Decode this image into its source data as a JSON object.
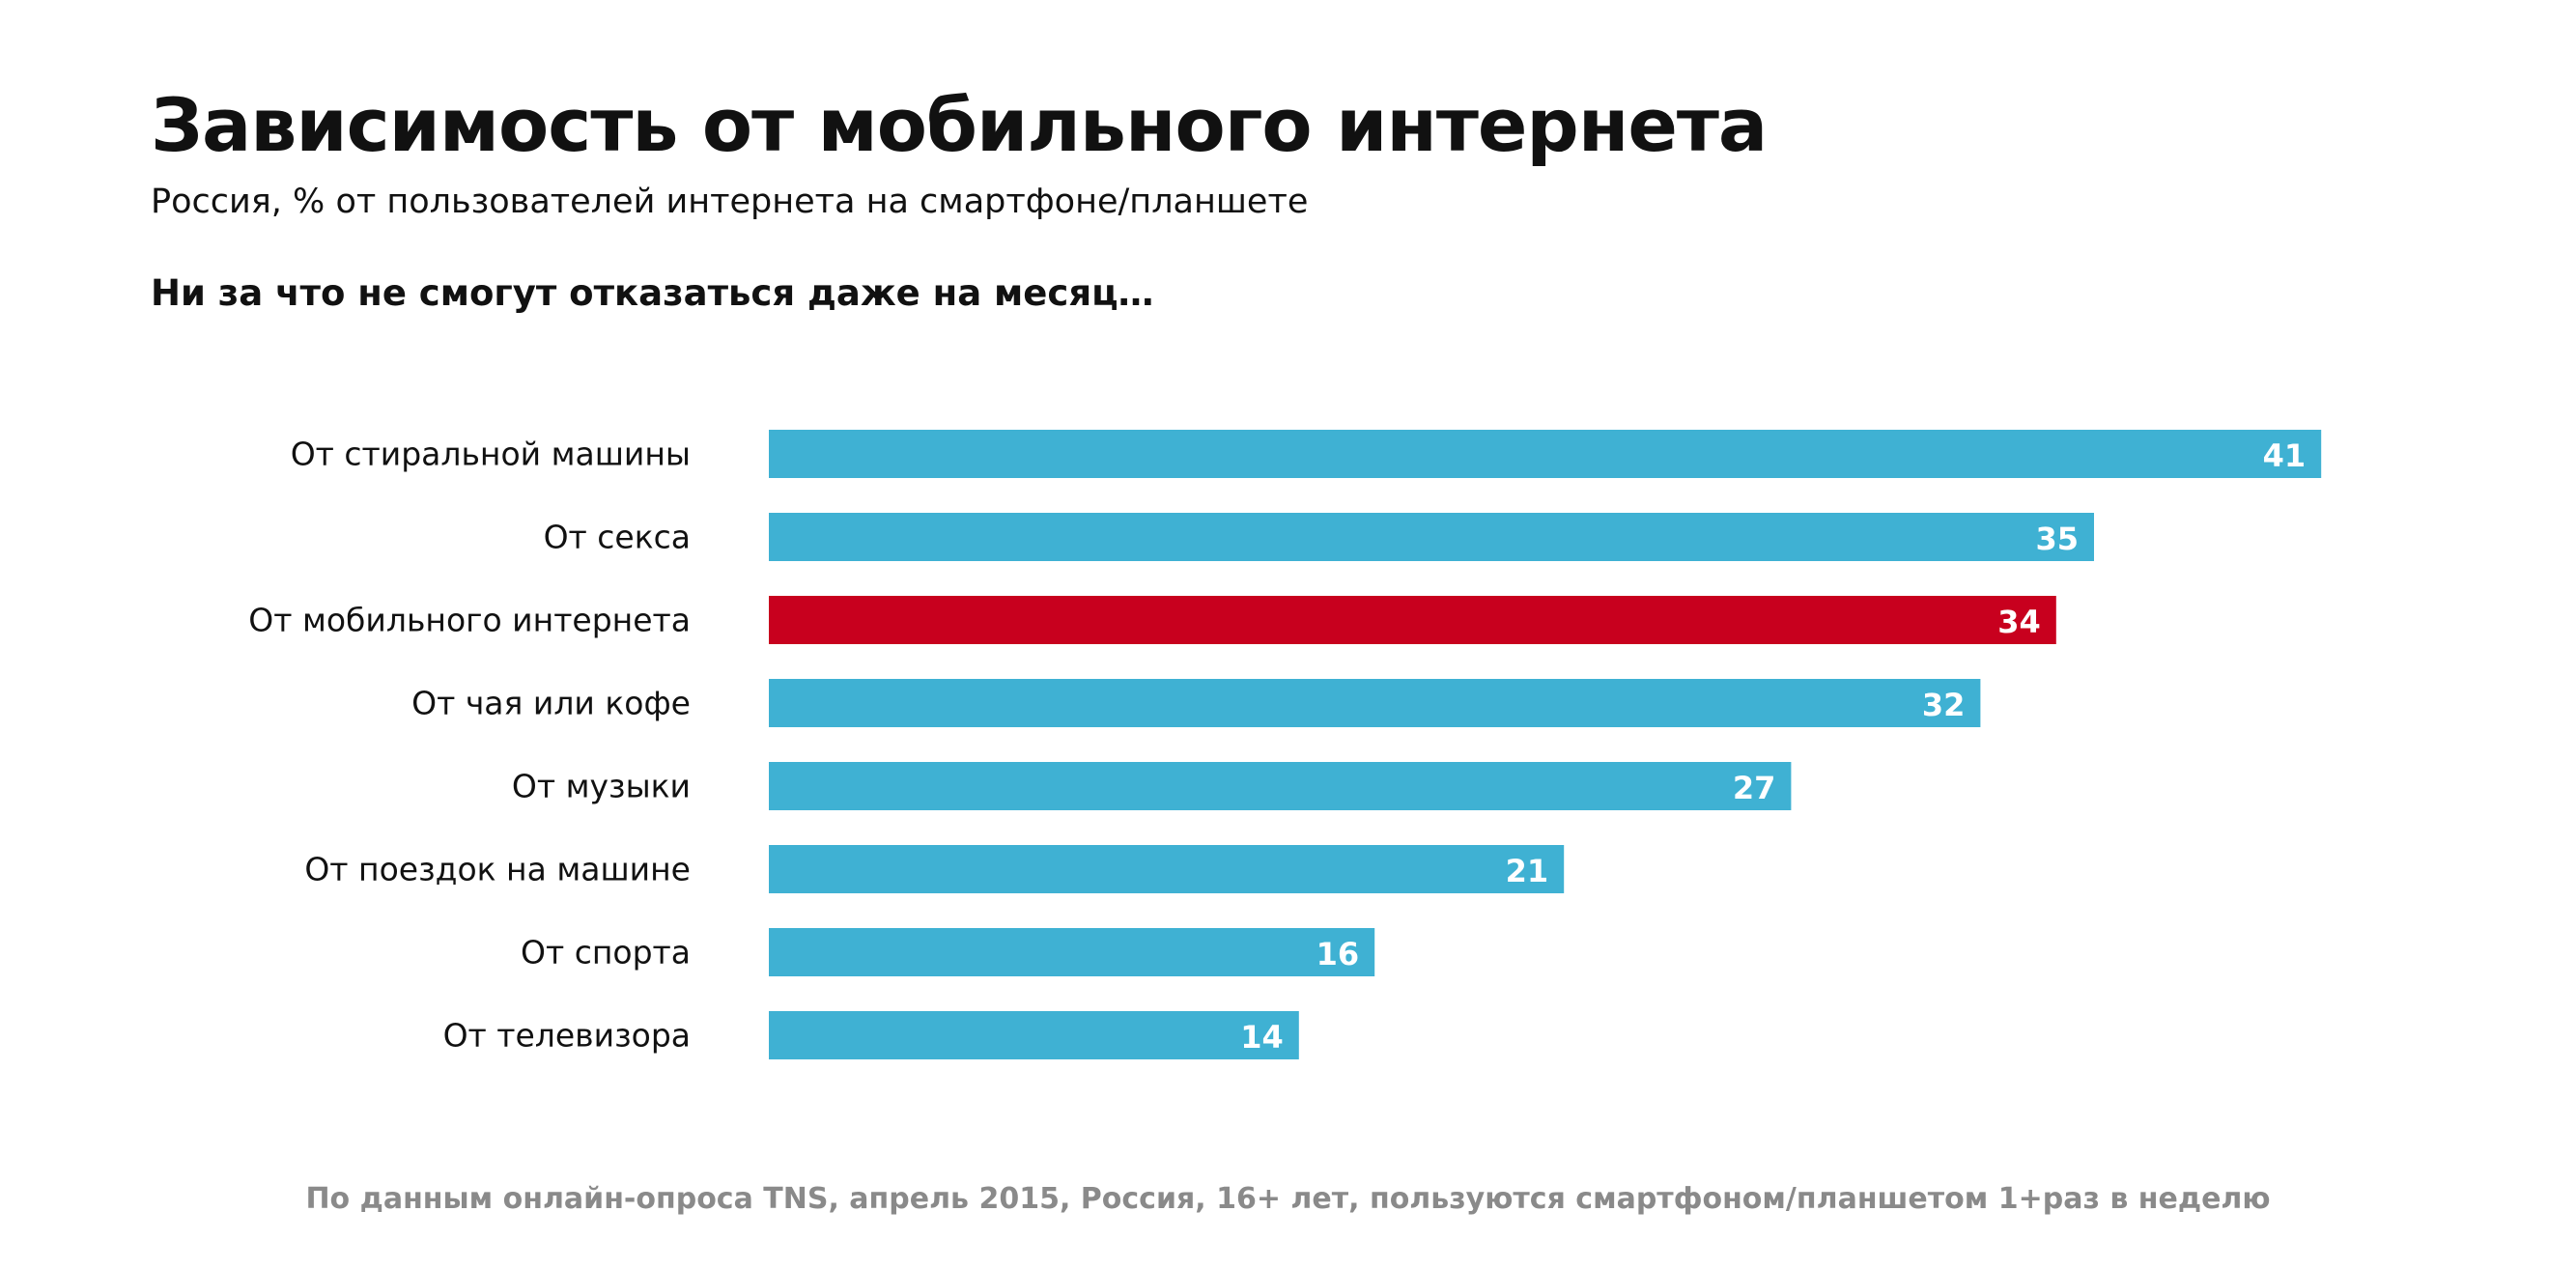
{
  "header": {
    "title": "Зависимость от мобильного интернета",
    "subtitle": "Россия, % от пользователей интернета на смартфоне/планшете",
    "question": "Ни за что не смогут отказаться даже на месяц…"
  },
  "footer": {
    "source": "По данным онлайн-опроса TNS, апрель 2015, Россия, 16+ лет, пользуются смартфоном/планшетом 1+раз в неделю"
  },
  "colors": {
    "bar_default": "#3fb1d3",
    "bar_highlight": "#c8001e",
    "value_label": "#ffffff",
    "category_label": "#111111"
  },
  "chart_data": {
    "type": "bar",
    "orientation": "horizontal",
    "categories": [
      "От стиральной машины",
      "От секса",
      "От мобильного интернета",
      "От чая или кофе",
      "От музыки",
      "От поездок на машине",
      "От спорта",
      "От телевизора"
    ],
    "values": [
      41,
      35,
      34,
      32,
      27,
      21,
      16,
      14
    ],
    "highlight_index": 2,
    "data_labels": [
      "41",
      "35",
      "34",
      "32",
      "27",
      "21",
      "16",
      "14"
    ],
    "unit": "%",
    "grid": false,
    "legend": "none"
  }
}
